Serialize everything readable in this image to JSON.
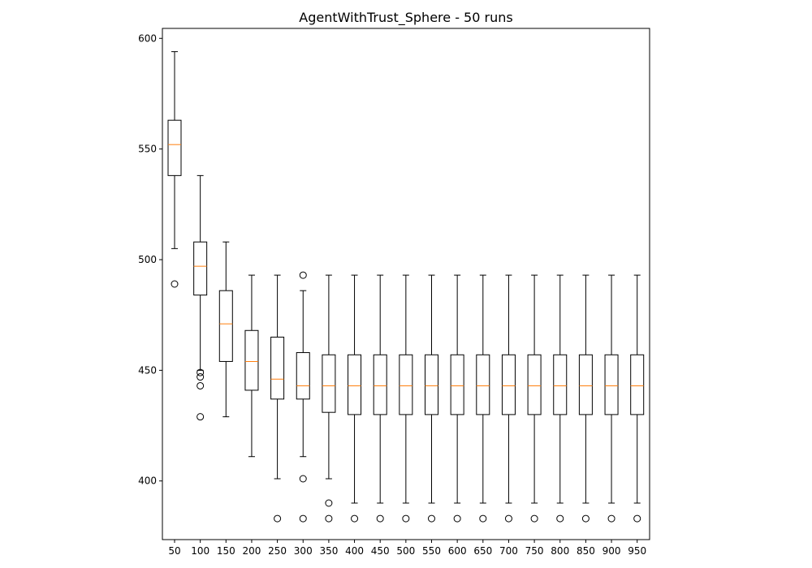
{
  "chart_data": {
    "type": "box",
    "title": "AgentWithTrust_Sphere - 50 runs",
    "xlabel": "",
    "ylabel": "",
    "ylim": [
      373.5,
      604.5
    ],
    "yticks": [
      400,
      450,
      500,
      550,
      600
    ],
    "grid": false,
    "legend": "none",
    "colors": {
      "box": "#000000",
      "median": "#ff7f0e",
      "background": "#ffffff"
    },
    "categories": [
      "50",
      "100",
      "150",
      "200",
      "250",
      "300",
      "350",
      "400",
      "450",
      "500",
      "550",
      "600",
      "650",
      "700",
      "750",
      "800",
      "850",
      "900",
      "950"
    ],
    "boxes": [
      {
        "x": "50",
        "whislo": 505,
        "q1": 538,
        "median": 552,
        "q3": 563,
        "whishi": 594,
        "fliers": [
          489
        ]
      },
      {
        "x": "100",
        "whislo": 450,
        "q1": 484,
        "median": 497,
        "q3": 508,
        "whishi": 538,
        "fliers": [
          449,
          447,
          443,
          429
        ]
      },
      {
        "x": "150",
        "whislo": 429,
        "q1": 454,
        "median": 471,
        "q3": 486,
        "whishi": 508,
        "fliers": []
      },
      {
        "x": "200",
        "whislo": 411,
        "q1": 441,
        "median": 454,
        "q3": 468,
        "whishi": 493,
        "fliers": []
      },
      {
        "x": "250",
        "whislo": 401,
        "q1": 437,
        "median": 446,
        "q3": 465,
        "whishi": 493,
        "fliers": [
          383
        ]
      },
      {
        "x": "300",
        "whislo": 411,
        "q1": 437,
        "median": 443,
        "q3": 458,
        "whishi": 486,
        "fliers": [
          493,
          401,
          383
        ]
      },
      {
        "x": "350",
        "whislo": 401,
        "q1": 431,
        "median": 443,
        "q3": 457,
        "whishi": 493,
        "fliers": [
          390,
          383
        ]
      },
      {
        "x": "400",
        "whislo": 390,
        "q1": 430,
        "median": 443,
        "q3": 457,
        "whishi": 493,
        "fliers": [
          383
        ]
      },
      {
        "x": "450",
        "whislo": 390,
        "q1": 430,
        "median": 443,
        "q3": 457,
        "whishi": 493,
        "fliers": [
          383
        ]
      },
      {
        "x": "500",
        "whislo": 390,
        "q1": 430,
        "median": 443,
        "q3": 457,
        "whishi": 493,
        "fliers": [
          383
        ]
      },
      {
        "x": "550",
        "whislo": 390,
        "q1": 430,
        "median": 443,
        "q3": 457,
        "whishi": 493,
        "fliers": [
          383
        ]
      },
      {
        "x": "600",
        "whislo": 390,
        "q1": 430,
        "median": 443,
        "q3": 457,
        "whishi": 493,
        "fliers": [
          383
        ]
      },
      {
        "x": "650",
        "whislo": 390,
        "q1": 430,
        "median": 443,
        "q3": 457,
        "whishi": 493,
        "fliers": [
          383
        ]
      },
      {
        "x": "700",
        "whislo": 390,
        "q1": 430,
        "median": 443,
        "q3": 457,
        "whishi": 493,
        "fliers": [
          383
        ]
      },
      {
        "x": "750",
        "whislo": 390,
        "q1": 430,
        "median": 443,
        "q3": 457,
        "whishi": 493,
        "fliers": [
          383
        ]
      },
      {
        "x": "800",
        "whislo": 390,
        "q1": 430,
        "median": 443,
        "q3": 457,
        "whishi": 493,
        "fliers": [
          383
        ]
      },
      {
        "x": "850",
        "whislo": 390,
        "q1": 430,
        "median": 443,
        "q3": 457,
        "whishi": 493,
        "fliers": [
          383
        ]
      },
      {
        "x": "900",
        "whislo": 390,
        "q1": 430,
        "median": 443,
        "q3": 457,
        "whishi": 493,
        "fliers": [
          383
        ]
      },
      {
        "x": "950",
        "whislo": 390,
        "q1": 430,
        "median": 443,
        "q3": 457,
        "whishi": 493,
        "fliers": [
          383
        ]
      }
    ]
  }
}
